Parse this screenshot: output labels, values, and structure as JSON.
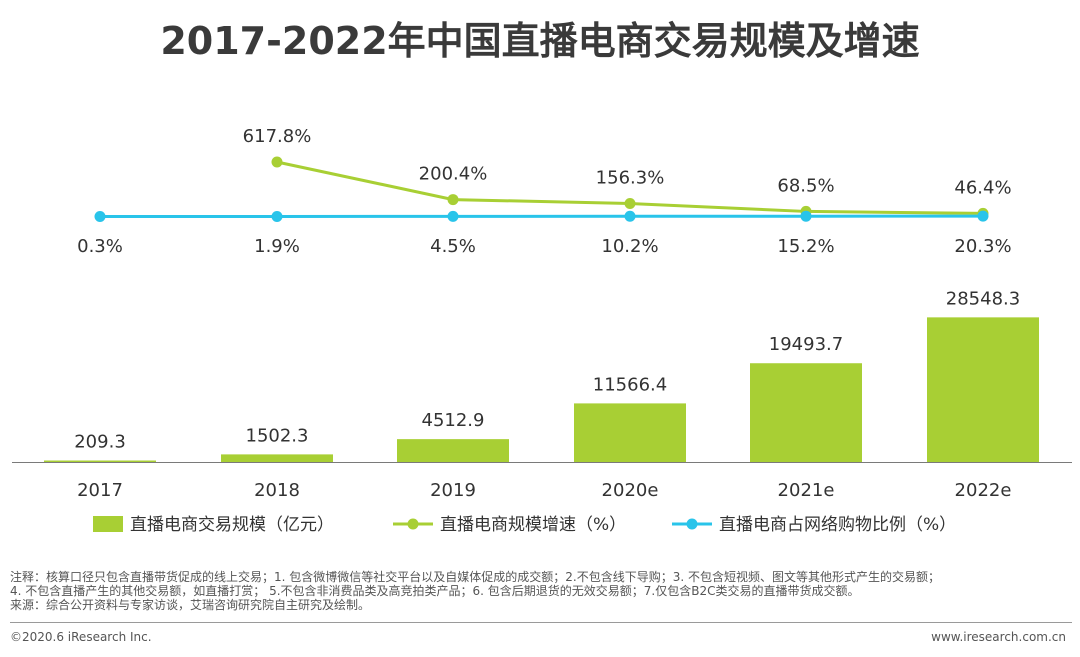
{
  "title": "2017-2022年中国直播电商交易规模及增速",
  "colors": {
    "bar": "#a8cf34",
    "growth_line": "#a8cf34",
    "share_line": "#29c4ea",
    "axis": "#7a7a7a"
  },
  "chart_data": {
    "type": "bar",
    "categories": [
      "2017",
      "2018",
      "2019",
      "2020e",
      "2021e",
      "2022e"
    ],
    "series": [
      {
        "name": "直播电商交易规模（亿元）",
        "type": "bar",
        "values": [
          209.3,
          1502.3,
          4512.9,
          11566.4,
          19493.7,
          28548.3
        ],
        "labels": [
          "209.3",
          "1502.3",
          "4512.9",
          "11566.4",
          "19493.7",
          "28548.3"
        ]
      },
      {
        "name": "直播电商规模增速（%）",
        "type": "line",
        "values": [
          null,
          617.8,
          200.4,
          156.3,
          68.5,
          46.4
        ],
        "labels": [
          "",
          "617.8%",
          "200.4%",
          "156.3%",
          "68.5%",
          "46.4%"
        ]
      },
      {
        "name": "直播电商占网络购物比例（%）",
        "type": "line",
        "values": [
          0.3,
          1.9,
          4.5,
          10.2,
          15.2,
          20.3
        ],
        "labels": [
          "0.3%",
          "1.9%",
          "4.5%",
          "10.2%",
          "15.2%",
          "20.3%"
        ]
      }
    ],
    "legend_position": "bottom",
    "grid": false
  },
  "notes": {
    "line1": "注释：核算口径只包含直播带货促成的线上交易；1. 包含微博微信等社交平台以及自媒体促成的成交额；2.不包含线下导购；3. 不包含短视频、图文等其他形式产生的交易额；",
    "line2": " 4. 不包含直播产生的其他交易额，如直播打赏； 5.不包含非消费品类及高竞拍类产品；6. 包含后期退货的无效交易额；7.仅包含B2C类交易的直播带货成交额。",
    "line3": "来源：综合公开资料与专家访谈，艾瑞咨询研究院自主研究及绘制。"
  },
  "footer": {
    "copyright": "©2020.6 iResearch Inc.",
    "website": "www.iresearch.com.cn"
  }
}
